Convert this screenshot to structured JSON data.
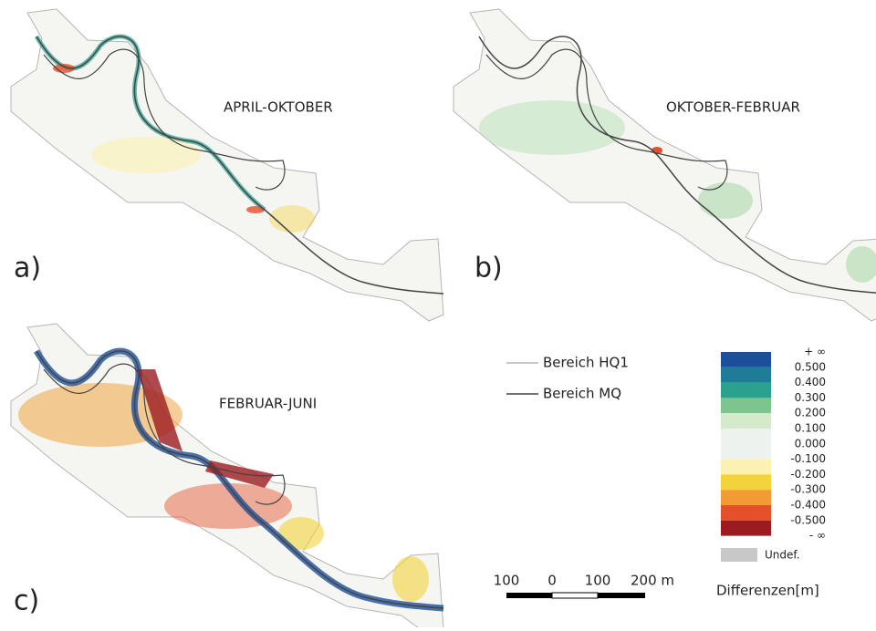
{
  "panels": [
    {
      "label": "a)",
      "title": "APRIL-OKTOBER"
    },
    {
      "label": "b)",
      "title": "OKTOBER-FEBRUAR"
    },
    {
      "label": "c)",
      "title": "FEBRUAR-JUNI"
    }
  ],
  "line_legend": [
    {
      "label": "Bereich HQ1",
      "color": "#b5b5b5"
    },
    {
      "label": "Bereich MQ",
      "color": "#444444"
    }
  ],
  "color_scale": {
    "labels": [
      "+ ∞",
      "0.500",
      "0.400",
      "0.300",
      "0.200",
      "0.100",
      "0.000",
      "-0.100",
      "-0.200",
      "-0.300",
      "-0.400",
      "-0.500",
      "- ∞"
    ],
    "colors": [
      "#1b4f9b",
      "#1f7c96",
      "#2aa08e",
      "#7cc58f",
      "#d3ebcb",
      "#eef2ef",
      "#eef2ef",
      "#fbf1b3",
      "#f2d33c",
      "#f29b34",
      "#e4502a",
      "#9b1b20"
    ],
    "undef_label": "Undef.",
    "undef_color": "#c8c8c8",
    "title": "Differenzen[m]"
  },
  "scale_bar": {
    "labels": [
      "100",
      "0",
      "100",
      "200 m"
    ]
  }
}
